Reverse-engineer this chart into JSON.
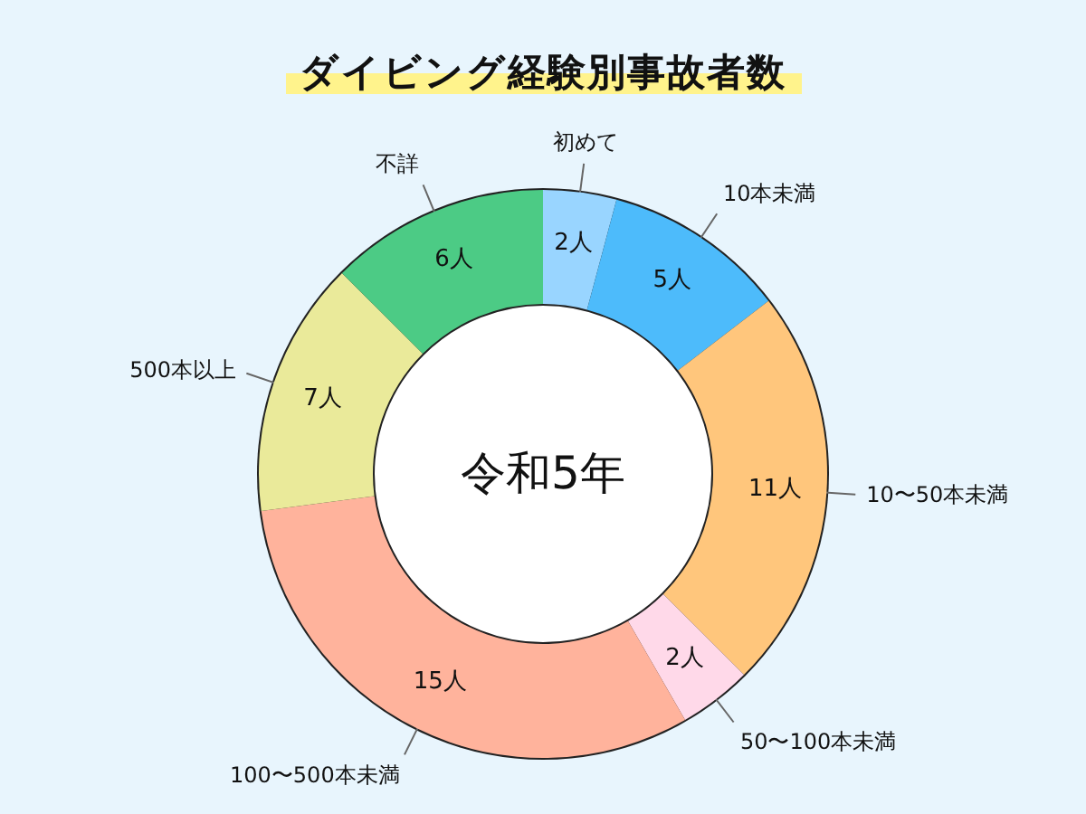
{
  "chart_data": {
    "type": "donut",
    "title": "ダイビング経験別事故者数",
    "categories": [
      "初めて",
      "10本未満",
      "10〜50本未満",
      "50〜100本未満",
      "100〜500本未満",
      "500本以上",
      "不詳"
    ],
    "values": [
      2,
      5,
      11,
      2,
      15,
      7,
      6
    ],
    "colors": [
      "#99d5ff",
      "#4dbbfb",
      "#ffc67c",
      "#ffd9e9",
      "#ffb39c",
      "#eaea9a",
      "#4ccb85"
    ],
    "value_labels": [
      "2人",
      "5人",
      "11人",
      "2人",
      "15人",
      "7人",
      "6人"
    ],
    "annotations": [
      "令和5年"
    ]
  }
}
